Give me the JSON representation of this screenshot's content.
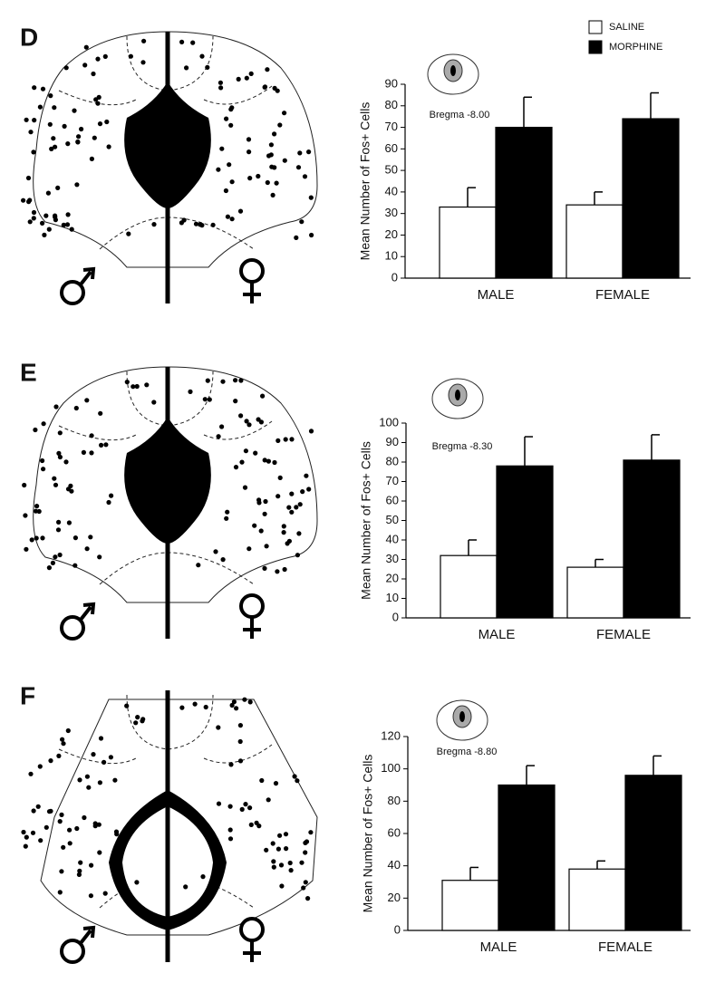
{
  "chart_data": [
    {
      "type": "bar",
      "panel": "D",
      "annotation": "Bregma -8.00",
      "ylabel": "Mean Number of Fos+ Cells",
      "categories": [
        "MALE",
        "FEMALE"
      ],
      "series": [
        {
          "name": "SALINE",
          "color": "#ffffff",
          "values": [
            33,
            34
          ],
          "errors": [
            9,
            6
          ]
        },
        {
          "name": "MORPHINE",
          "color": "#000000",
          "values": [
            70,
            74
          ],
          "errors": [
            14,
            12
          ]
        }
      ],
      "ylim": [
        0,
        90
      ],
      "yticks": [
        0,
        10,
        20,
        30,
        40,
        50,
        60,
        70,
        80,
        90
      ]
    },
    {
      "type": "bar",
      "panel": "E",
      "annotation": "Bregma -8.30",
      "ylabel": "Mean Number of Fos+ Cells",
      "categories": [
        "MALE",
        "FEMALE"
      ],
      "series": [
        {
          "color": "#ffffff",
          "values": [
            32,
            26
          ],
          "errors": [
            8,
            4
          ]
        },
        {
          "color": "#000000",
          "values": [
            78,
            81
          ],
          "errors": [
            15,
            13
          ]
        }
      ],
      "ylim": [
        0,
        100
      ],
      "yticks": [
        0,
        10,
        20,
        30,
        40,
        50,
        60,
        70,
        80,
        90,
        100
      ]
    },
    {
      "type": "bar",
      "panel": "F",
      "annotation": "Bregma -8.80",
      "ylabel": "Mean Number of Fos+ Cells",
      "categories": [
        "MALE",
        "FEMALE"
      ],
      "series": [
        {
          "color": "#ffffff",
          "values": [
            31,
            38
          ],
          "errors": [
            8,
            5
          ]
        },
        {
          "color": "#000000",
          "values": [
            90,
            96
          ],
          "errors": [
            12,
            12
          ]
        }
      ],
      "ylim": [
        0,
        120
      ],
      "yticks": [
        0,
        20,
        40,
        60,
        80,
        100,
        120
      ]
    }
  ]
}
